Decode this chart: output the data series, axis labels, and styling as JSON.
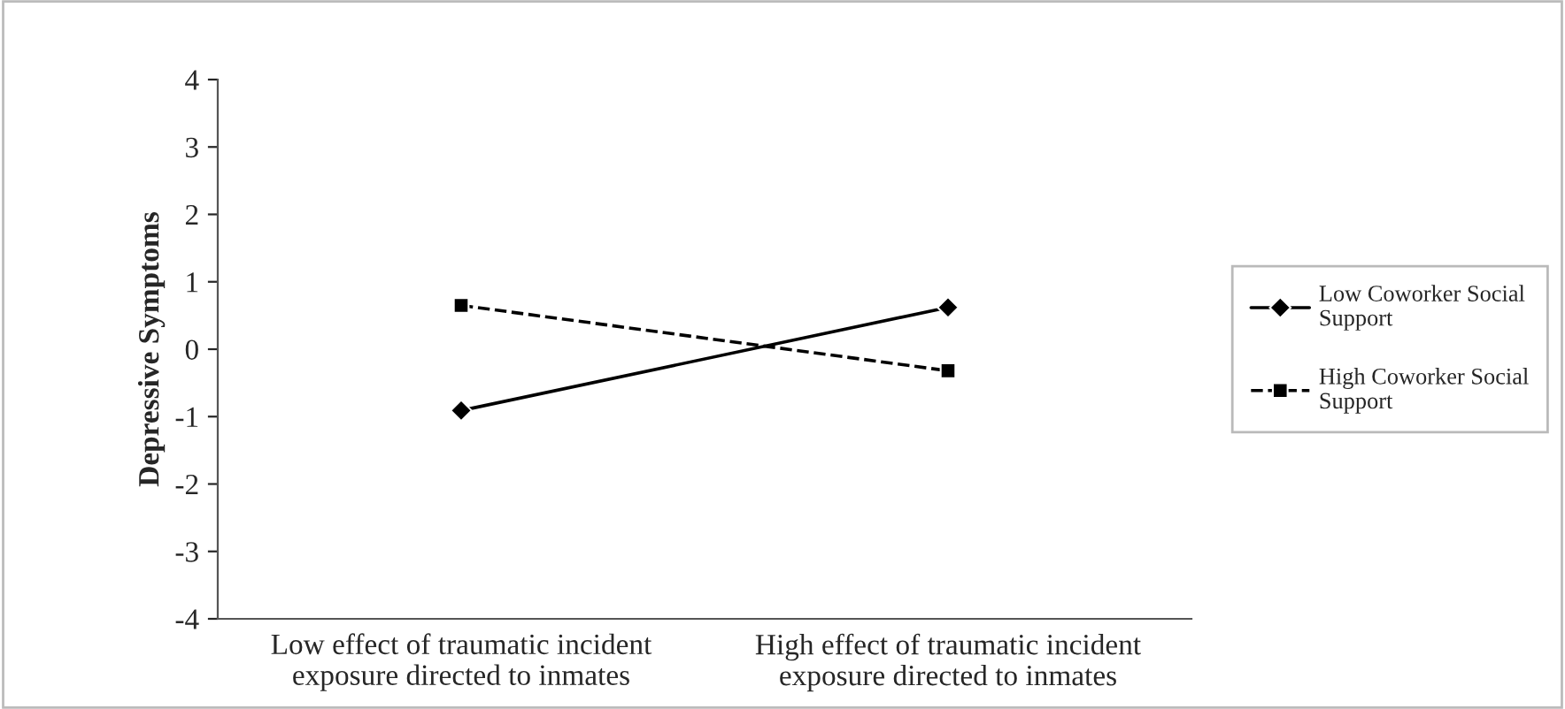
{
  "chart_data": {
    "type": "line",
    "ylabel": "Depressive Symptoms",
    "categories": [
      "Low effect of traumatic incident\nexposure directed to inmates",
      "High effect of traumatic incident\nexposure directed to inmates"
    ],
    "series": [
      {
        "name": "Low Coworker Social\nSupport",
        "color": "#000000",
        "values": [
          -0.91,
          0.62
        ],
        "marker": "diamond",
        "line_style": "solid"
      },
      {
        "name": "High Coworker Social\nSupport",
        "color": "#000000",
        "values": [
          0.65,
          -0.32
        ],
        "marker": "square",
        "line_style": "dashed"
      }
    ],
    "ylim": [
      -4,
      4
    ],
    "yticks": [
      -4,
      -3,
      -2,
      -1,
      0,
      1,
      2,
      3,
      4
    ],
    "grid": false,
    "legend": "right"
  }
}
